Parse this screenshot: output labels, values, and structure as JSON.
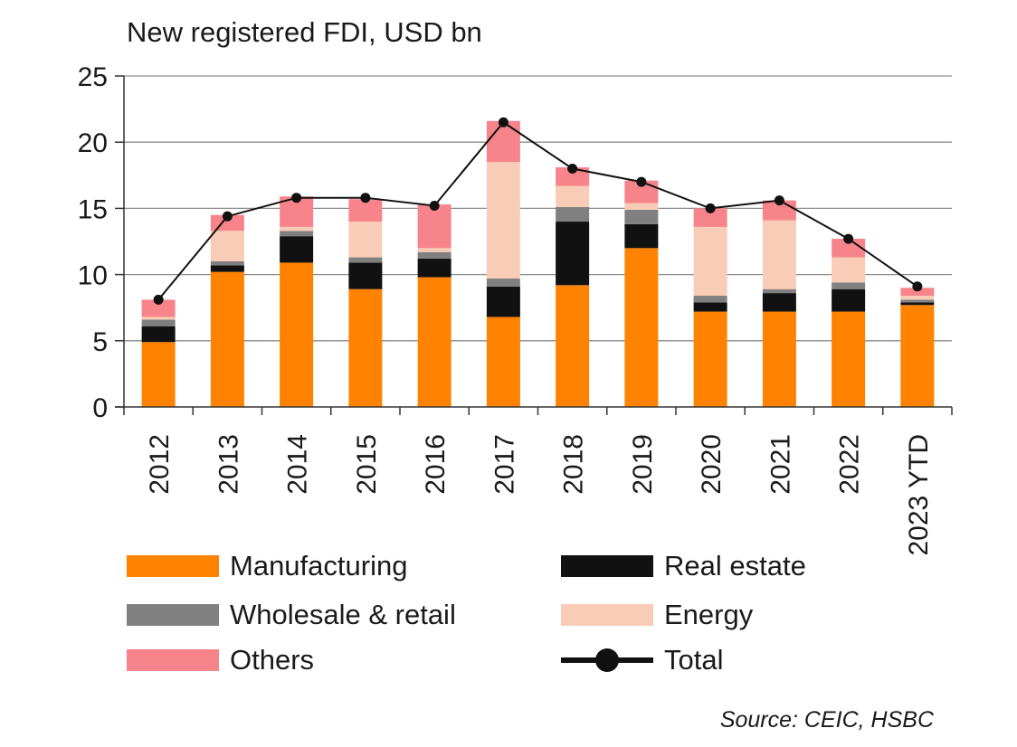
{
  "chart_data": {
    "type": "bar",
    "stacked": true,
    "title": "New registered FDI, USD bn",
    "source": "Source: CEIC, HSBC",
    "categories": [
      "2012",
      "2013",
      "2014",
      "2015",
      "2016",
      "2017",
      "2018",
      "2019",
      "2020",
      "2021",
      "2022",
      "2023 YTD"
    ],
    "ylim": [
      0,
      25
    ],
    "yticks": [
      0,
      5,
      10,
      15,
      20,
      25
    ],
    "grid": true,
    "legend_position": "bottom",
    "series": [
      {
        "name": "Manufacturing",
        "color": "#FF8200",
        "values": [
          4.9,
          10.2,
          10.9,
          8.9,
          9.8,
          6.8,
          9.2,
          12.0,
          7.2,
          7.2,
          7.2,
          7.7
        ]
      },
      {
        "name": "Real estate",
        "color": "#111111",
        "values": [
          1.2,
          0.5,
          2.0,
          2.0,
          1.4,
          2.3,
          4.8,
          1.8,
          0.7,
          1.4,
          1.7,
          0.2
        ]
      },
      {
        "name": "Wholesale & retail",
        "color": "#808080",
        "values": [
          0.5,
          0.3,
          0.4,
          0.4,
          0.5,
          0.6,
          1.1,
          1.1,
          0.5,
          0.3,
          0.5,
          0.2
        ]
      },
      {
        "name": "Energy",
        "color": "#F8CCB6",
        "values": [
          0.2,
          2.3,
          0.3,
          2.7,
          0.3,
          8.8,
          1.6,
          0.5,
          5.2,
          5.2,
          1.9,
          0.3
        ]
      },
      {
        "name": "Others",
        "color": "#F7848A",
        "values": [
          1.3,
          1.2,
          2.3,
          1.7,
          3.3,
          3.1,
          1.4,
          1.7,
          1.4,
          1.5,
          1.4,
          0.6
        ]
      }
    ],
    "line_series": {
      "name": "Total",
      "color": "#111111",
      "values": [
        8.1,
        14.4,
        15.8,
        15.8,
        15.2,
        21.5,
        18.0,
        17.0,
        15.0,
        15.6,
        12.7,
        9.1
      ]
    }
  }
}
